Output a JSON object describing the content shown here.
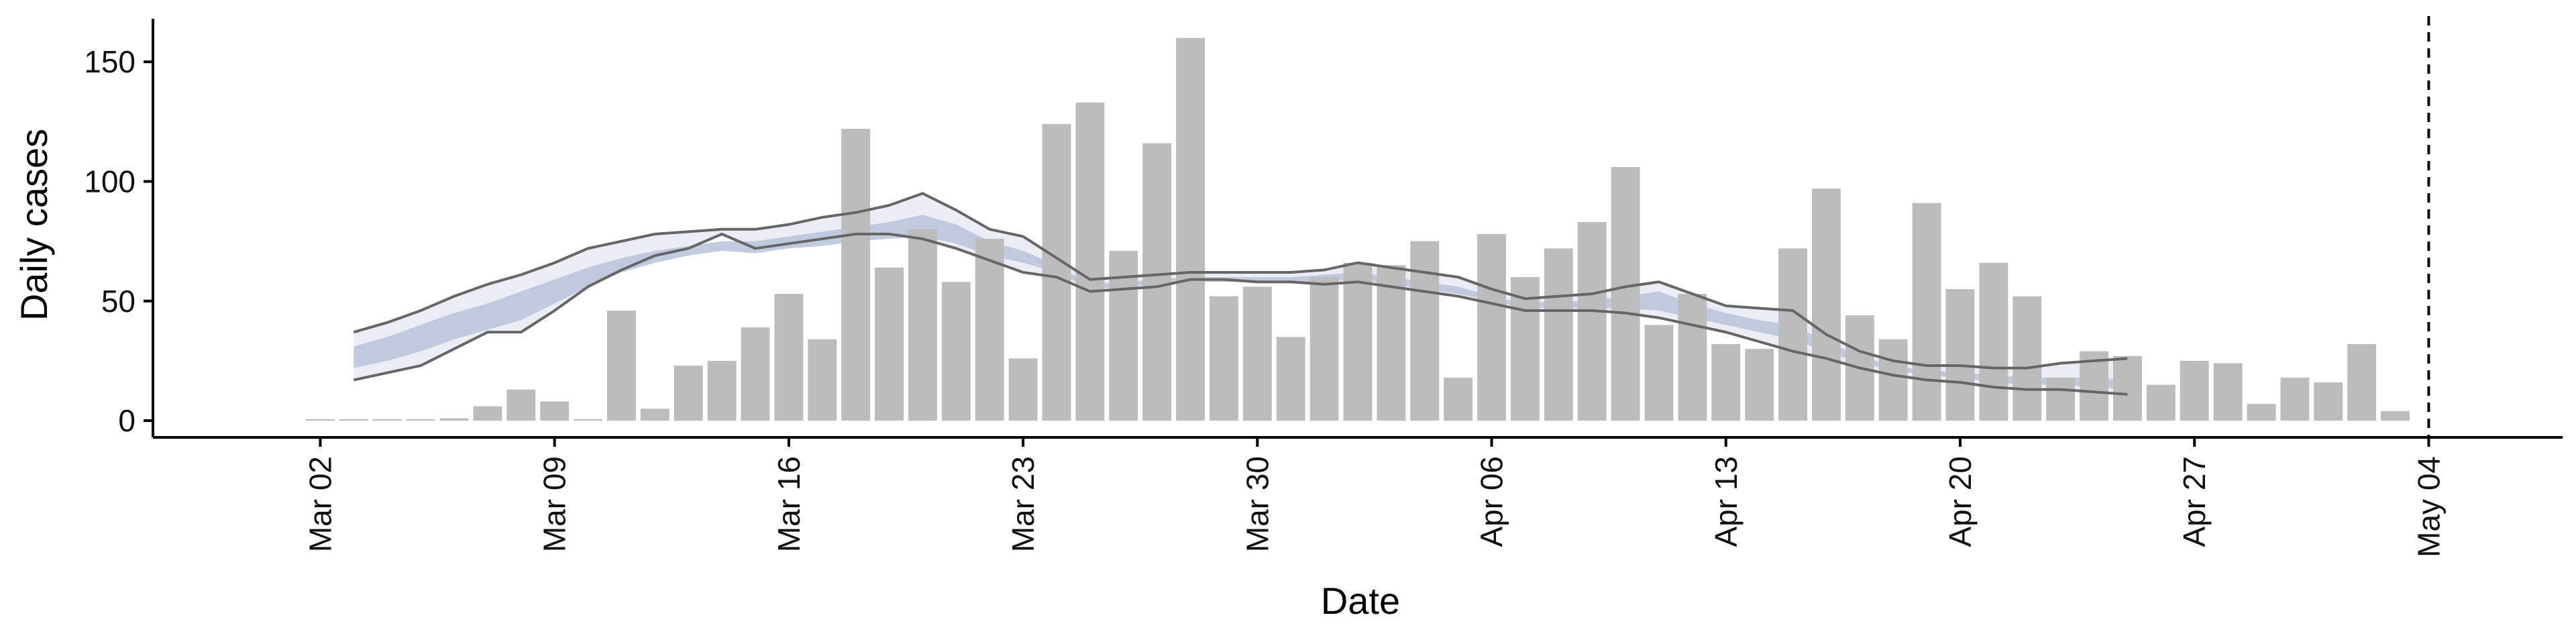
{
  "chart_data": {
    "type": "bar",
    "title": "",
    "xlabel": "Date",
    "ylabel": "Daily cases",
    "ylim": [
      -7,
      168
    ],
    "yticks": [
      0,
      50,
      100,
      150
    ],
    "x_ticks": [
      {
        "date": "2020-03-02",
        "label": "Mar 02"
      },
      {
        "date": "2020-03-09",
        "label": "Mar 09"
      },
      {
        "date": "2020-03-16",
        "label": "Mar 16"
      },
      {
        "date": "2020-03-23",
        "label": "Mar 23"
      },
      {
        "date": "2020-03-30",
        "label": "Mar 30"
      },
      {
        "date": "2020-04-06",
        "label": "Apr 06"
      },
      {
        "date": "2020-04-13",
        "label": "Apr 13"
      },
      {
        "date": "2020-04-20",
        "label": "Apr 20"
      },
      {
        "date": "2020-04-27",
        "label": "Apr 27"
      },
      {
        "date": "2020-05-04",
        "label": "May 04"
      }
    ],
    "xlim": [
      "2020-02-26",
      "2020-05-08"
    ],
    "reference_line": {
      "date": "2020-05-04",
      "style": "dashed"
    },
    "grid": false,
    "legend": "none",
    "colors": {
      "bars": "#bcbcbc",
      "outer_band": "#e8eaf2",
      "inner_band": "#b9c2d8",
      "bounds": "#666666"
    },
    "bars": {
      "start_date": "2020-03-02",
      "values": [
        0,
        0,
        0,
        0,
        1,
        6,
        13,
        8,
        0,
        46,
        5,
        23,
        25,
        39,
        53,
        34,
        122,
        64,
        80,
        58,
        76,
        26,
        124,
        133,
        71,
        116,
        160,
        52,
        56,
        35,
        60,
        66,
        65,
        75,
        18,
        78,
        60,
        72,
        83,
        106,
        40,
        53,
        32,
        30,
        72,
        97,
        44,
        34,
        91,
        55,
        66,
        52,
        18,
        29,
        27,
        15,
        25,
        24,
        7,
        18,
        16,
        32,
        4
      ]
    },
    "estimate": {
      "start_date": "2020-03-03",
      "outer_upper": [
        37,
        41,
        46,
        52,
        57,
        61,
        66,
        72,
        75,
        78,
        79,
        80,
        80,
        82,
        85,
        87,
        90,
        95,
        88,
        80,
        77,
        68,
        59,
        60,
        61,
        62,
        62,
        62,
        62,
        63,
        66,
        64,
        62,
        60,
        55,
        51,
        52,
        53,
        56,
        58,
        53,
        48,
        47,
        46,
        36,
        29,
        25,
        23,
        23,
        22,
        22,
        24,
        25,
        26
      ],
      "outer_lower": [
        17,
        20,
        23,
        30,
        37,
        37,
        46,
        56,
        63,
        69,
        72,
        78,
        72,
        74,
        76,
        78,
        78,
        76,
        72,
        67,
        62,
        60,
        54,
        55,
        56,
        59,
        59,
        58,
        58,
        57,
        58,
        56,
        54,
        52,
        49,
        46,
        46,
        46,
        45,
        43,
        40,
        37,
        33,
        29,
        26,
        22,
        19,
        17,
        16,
        14,
        13,
        13,
        12,
        11
      ],
      "inner_upper": [
        31,
        35,
        40,
        45,
        49,
        54,
        59,
        64,
        68,
        71,
        73,
        75,
        75,
        77,
        79,
        81,
        83,
        86,
        82,
        75,
        71,
        65,
        57,
        58,
        59,
        60,
        60,
        60,
        60,
        61,
        62,
        60,
        58,
        56,
        52,
        49,
        50,
        50,
        52,
        54,
        49,
        45,
        42,
        40,
        33,
        27,
        23,
        21,
        20,
        19,
        18,
        18,
        18,
        17
      ],
      "inner_lower": [
        22,
        25,
        29,
        34,
        38,
        42,
        49,
        56,
        62,
        66,
        69,
        71,
        70,
        72,
        73,
        75,
        76,
        77,
        74,
        69,
        66,
        62,
        55,
        56,
        57,
        58,
        58,
        58,
        58,
        58,
        59,
        57,
        55,
        53,
        50,
        47,
        47,
        47,
        47,
        46,
        43,
        40,
        37,
        34,
        29,
        24,
        21,
        19,
        18,
        16,
        15,
        15,
        14,
        13
      ]
    }
  }
}
